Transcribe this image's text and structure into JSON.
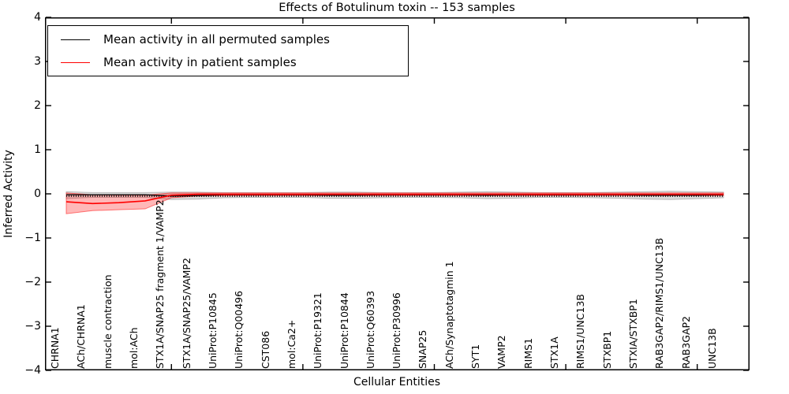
{
  "title": "Effects of Botulinum toxin -- 153 samples",
  "axes": {
    "xlabel": "Cellular Entities",
    "ylabel": "Inferred Activity",
    "y_tick_labels": [
      "4",
      "3",
      "2",
      "1",
      "0",
      "−1",
      "−2",
      "−3",
      "−4"
    ],
    "y_tick_values": [
      4,
      3,
      2,
      1,
      0,
      -1,
      -2,
      -3,
      -4
    ],
    "ylim": [
      -4,
      4
    ]
  },
  "legend": {
    "entries": [
      {
        "label": "Mean activity in all permuted samples",
        "color": "#000000"
      },
      {
        "label": "Mean activity in patient samples",
        "color": "#ff0000"
      }
    ],
    "position": "upper left"
  },
  "colors": {
    "permuted_line": "#000000",
    "permuted_band": "rgba(128,128,128,0.30)",
    "permuted_band_edge": "rgba(128,128,128,0.45)",
    "patient_line": "#ff0000",
    "patient_band": "rgba(255,0,0,0.28)",
    "patient_band_edge": "rgba(255,0,0,0.50)",
    "frame": "#000000",
    "background": "#ffffff"
  },
  "chart_data": {
    "type": "line",
    "title": "Effects of Botulinum toxin -- 153 samples",
    "xlabel": "Cellular Entities",
    "ylabel": "Inferred Activity",
    "ylim": [
      -4,
      4
    ],
    "grid": false,
    "legend_position": "upper left",
    "categories": [
      "CHRNA1",
      "ACh/CHRNA1",
      "muscle contraction",
      "mol:ACh",
      "STX1A/SNAP25 fragment 1/VAMP2",
      "STX1A/SNAP25/VAMP2",
      "UniProt:P10845",
      "UniProt:Q00496",
      "CST086",
      "mol:Ca2+",
      "UniProt:P19321",
      "UniProt:P10844",
      "UniProt:Q60393",
      "UniProt:P30996",
      "SNAP25",
      "ACh/Synaptotagmin 1",
      "SYT1",
      "VAMP2",
      "RIMS1",
      "STX1A",
      "RIMS1/UNC13B",
      "STXBP1",
      "STXIA/STXBP1",
      "RAB3GAP2/RIMS1/UNC13B",
      "RAB3GAP2",
      "UNC13B"
    ],
    "x_major_tick_indices": [
      4,
      9,
      14,
      19,
      24
    ],
    "series": [
      {
        "name": "Mean activity in all permuted samples",
        "color": "#000000",
        "values": [
          -0.02,
          -0.02,
          -0.02,
          -0.02,
          -0.05,
          -0.04,
          -0.02,
          -0.02,
          -0.02,
          -0.02,
          -0.03,
          -0.03,
          -0.02,
          -0.02,
          -0.02,
          -0.02,
          -0.03,
          -0.02,
          -0.02,
          -0.02,
          -0.02,
          -0.02,
          -0.03,
          -0.03,
          -0.03,
          -0.02
        ],
        "band_upper": [
          0.05,
          0.03,
          0.03,
          0.03,
          0.04,
          0.04,
          0.03,
          0.03,
          0.03,
          0.03,
          0.04,
          0.04,
          0.03,
          0.03,
          0.03,
          0.04,
          0.05,
          0.04,
          0.03,
          0.03,
          0.03,
          0.04,
          0.05,
          0.06,
          0.05,
          0.04
        ],
        "band_lower": [
          -0.11,
          -0.08,
          -0.08,
          -0.08,
          -0.13,
          -0.12,
          -0.09,
          -0.08,
          -0.08,
          -0.08,
          -0.1,
          -0.1,
          -0.09,
          -0.08,
          -0.08,
          -0.09,
          -0.11,
          -0.1,
          -0.08,
          -0.08,
          -0.09,
          -0.1,
          -0.12,
          -0.13,
          -0.11,
          -0.09
        ]
      },
      {
        "name": "Mean activity in patient samples",
        "color": "#ff0000",
        "values": [
          -0.18,
          -0.22,
          -0.2,
          -0.16,
          -0.03,
          -0.01,
          -0.01,
          -0.01,
          -0.01,
          -0.01,
          -0.01,
          -0.01,
          -0.01,
          -0.01,
          -0.01,
          -0.01,
          -0.01,
          -0.01,
          -0.01,
          -0.01,
          -0.01,
          -0.01,
          -0.01,
          -0.01,
          -0.01,
          -0.01
        ],
        "band_upper": [
          0.02,
          -0.02,
          -0.03,
          -0.03,
          0.02,
          0.02,
          0.02,
          0.02,
          0.02,
          0.02,
          0.02,
          0.02,
          0.02,
          0.02,
          0.02,
          0.02,
          0.02,
          0.02,
          0.02,
          0.02,
          0.02,
          0.02,
          0.02,
          0.02,
          0.02,
          0.02
        ],
        "band_lower": [
          -0.45,
          -0.38,
          -0.36,
          -0.34,
          -0.09,
          -0.05,
          -0.04,
          -0.04,
          -0.04,
          -0.04,
          -0.04,
          -0.04,
          -0.04,
          -0.04,
          -0.04,
          -0.04,
          -0.04,
          -0.04,
          -0.04,
          -0.04,
          -0.04,
          -0.04,
          -0.04,
          -0.04,
          -0.04,
          -0.04
        ]
      }
    ]
  }
}
